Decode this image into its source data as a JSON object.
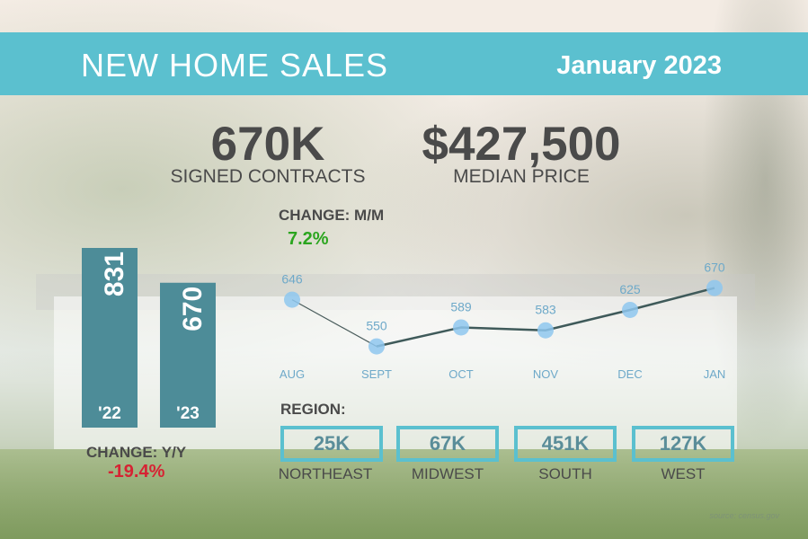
{
  "header": {
    "title": "NEW HOME SALES",
    "date": "January 2023"
  },
  "stats": {
    "contracts_value": "670K",
    "contracts_label": "SIGNED CONTRACTS",
    "price_value": "$427,500",
    "price_label": "MEDIAN PRICE"
  },
  "change_mm": {
    "label": "CHANGE: M/M",
    "value": "7.2%"
  },
  "change_yy": {
    "label": "CHANGE: Y/Y",
    "value": "-19.4%"
  },
  "region": {
    "heading": "REGION:",
    "items": [
      {
        "value": "25K",
        "name": "NORTHEAST"
      },
      {
        "value": "67K",
        "name": "MIDWEST"
      },
      {
        "value": "451K",
        "name": "SOUTH"
      },
      {
        "value": "127K",
        "name": "WEST"
      }
    ]
  },
  "source": "source: census.gov",
  "colors": {
    "banner": "#5bc0cf",
    "bar": "#4d8c98",
    "point": "#8ec7ef",
    "line": "#3f5a5a",
    "positive": "#2ba51f",
    "negative": "#d62333"
  },
  "chart_data": [
    {
      "type": "bar",
      "categories": [
        "'22",
        "'23"
      ],
      "values": [
        831,
        670
      ]
    },
    {
      "type": "line",
      "categories": [
        "AUG",
        "SEPT",
        "OCT",
        "NOV",
        "DEC",
        "JAN"
      ],
      "values": [
        646,
        550,
        589,
        583,
        625,
        670
      ]
    }
  ]
}
